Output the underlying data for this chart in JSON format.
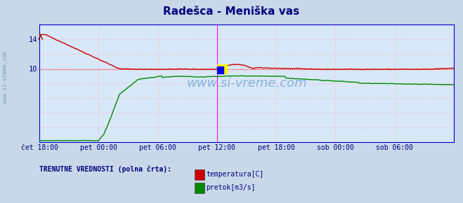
{
  "title": "Radešca - Meniška vas",
  "title_color": "#000080",
  "title_fontsize": 11,
  "fig_bg_color": "#c8d8e8",
  "plot_bg_color": "#d8e8f8",
  "xlabel_color": "#000080",
  "xticklabels": [
    "čet 18:00",
    "pet 00:00",
    "pet 06:00",
    "pet 12:00",
    "pet 18:00",
    "sob 00:00",
    "sob 06:00"
  ],
  "xtick_positions": [
    0,
    48,
    96,
    144,
    192,
    240,
    288
  ],
  "ylim": [
    0,
    16
  ],
  "xlim": [
    0,
    336
  ],
  "grid_color": "#ffaaaa",
  "vline_color": "#ff00ff",
  "vline_positions": [
    144,
    336
  ],
  "hline_color": "#ff0000",
  "hline_y": 9.9,
  "temp_color": "#cc0000",
  "flow_color": "#008800",
  "watermark": "www.si-vreme.com",
  "watermark_color": "#4488cc",
  "legend_text": "TRENUTNE VREDNOSTI (polna črta):",
  "legend_items": [
    "temperatura[C]",
    "pretok[m3/s]"
  ],
  "legend_colors": [
    "#cc0000",
    "#008800"
  ],
  "bottom_text_color": "#000080",
  "frame_color": "#0000cc",
  "arrow_color": "#aa0000"
}
